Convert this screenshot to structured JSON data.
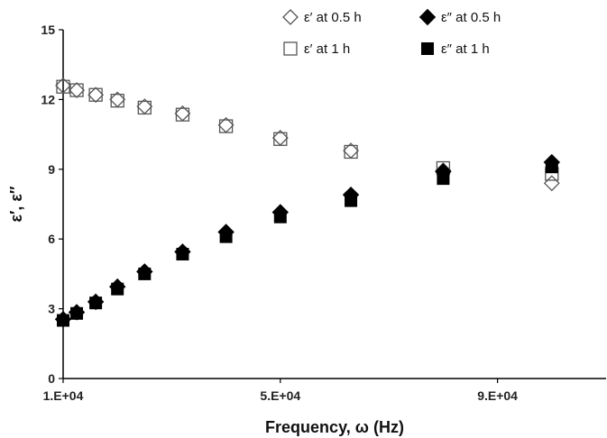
{
  "chart_data": {
    "type": "scatter",
    "xlabel": "Frequency, ω (Hz)",
    "ylabel": "ε′, ε″",
    "xlim": [
      10000,
      110000
    ],
    "ylim": [
      0,
      15
    ],
    "x_ticks": [
      10000,
      50000,
      90000
    ],
    "x_tick_labels": [
      "1.E+04",
      "5.E+04",
      "9.E+04"
    ],
    "y_ticks": [
      0,
      3,
      6,
      9,
      12,
      15
    ],
    "y_tick_labels": [
      "0",
      "3",
      "6",
      "9",
      "12",
      "15"
    ],
    "grid": false,
    "legend_position": "top-right",
    "x": [
      10000,
      12500,
      16000,
      20000,
      25000,
      32000,
      40000,
      50000,
      63000,
      80000,
      100000
    ],
    "series": [
      {
        "name": "ε′ at 0.5 h",
        "marker": "diamond-open",
        "values": [
          12.6,
          12.4,
          12.2,
          12.0,
          11.7,
          11.4,
          10.9,
          10.35,
          9.8,
          8.95,
          8.4
        ]
      },
      {
        "name": "ε″ at 0.5 h",
        "marker": "diamond-filled",
        "values": [
          2.55,
          2.85,
          3.3,
          3.95,
          4.6,
          5.45,
          6.3,
          7.15,
          7.9,
          8.9,
          9.3
        ]
      },
      {
        "name": "ε′ at 1 h",
        "marker": "square-open",
        "values": [
          12.55,
          12.4,
          12.2,
          11.95,
          11.65,
          11.35,
          10.85,
          10.3,
          9.75,
          9.05,
          8.8
        ]
      },
      {
        "name": "ε″ at 1 h",
        "marker": "square-filled",
        "values": [
          2.5,
          2.8,
          3.25,
          3.85,
          4.5,
          5.35,
          6.1,
          6.95,
          7.65,
          8.6,
          9.1
        ]
      }
    ]
  }
}
